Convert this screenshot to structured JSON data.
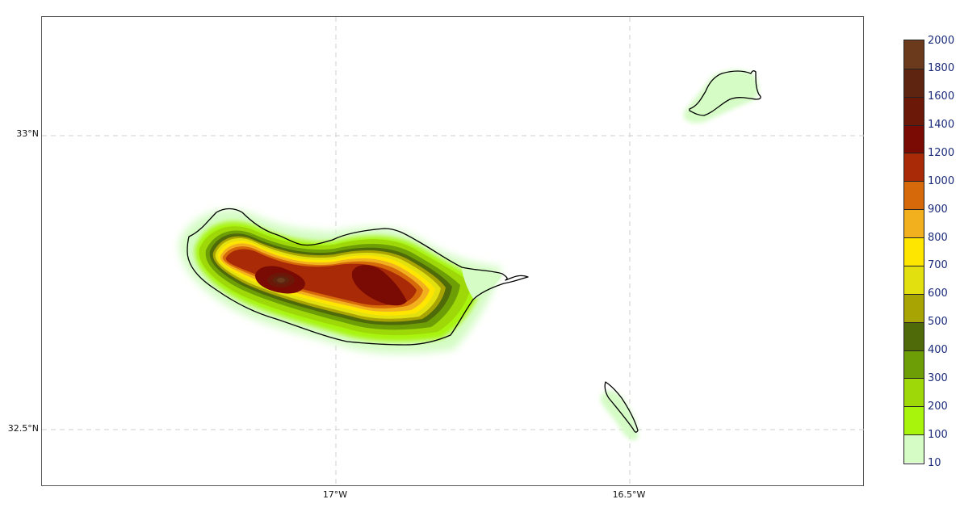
{
  "map": {
    "lat_labels": [
      "33°N",
      "32.5°N"
    ],
    "lon_labels": [
      "17°W",
      "16.5°W"
    ],
    "gridlines": "dashed",
    "colors": {
      "coastline": "#000000",
      "gridline": "#cccccc",
      "frame": "#555555"
    }
  },
  "colorbar": {
    "labels": [
      "2000",
      "1800",
      "1600",
      "1400",
      "1200",
      "1000",
      "900",
      "800",
      "700",
      "600",
      "500",
      "400",
      "300",
      "200",
      "100",
      "10"
    ],
    "colors_top_to_bottom": [
      "#6b3a1d",
      "#5e2410",
      "#6b1808",
      "#7a0a04",
      "#a82a06",
      "#d66a0a",
      "#f2b01e",
      "#ffe600",
      "#e3e010",
      "#a8a404",
      "#4f6a08",
      "#6e9e06",
      "#9ed808",
      "#a8f40c",
      "#d4fcc4"
    ]
  }
}
